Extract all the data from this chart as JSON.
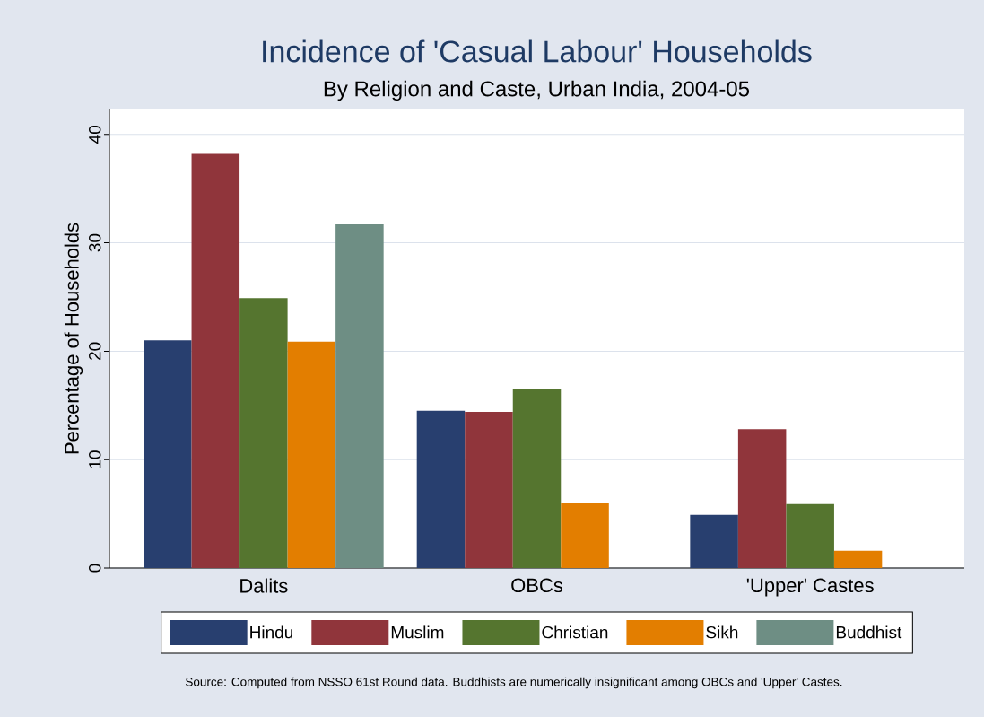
{
  "chart_data": {
    "type": "bar",
    "title": "Incidence of 'Casual Labour' Households",
    "subtitle": "By Religion and Caste, Urban India, 2004-05",
    "ylabel": "Percentage of Households",
    "categories": [
      "Dalits",
      "OBCs",
      "'Upper' Castes"
    ],
    "series": [
      {
        "name": "Hindu",
        "color": "#283f6f",
        "values": [
          21.0,
          14.5,
          4.9
        ]
      },
      {
        "name": "Muslim",
        "color": "#90353b",
        "values": [
          38.2,
          14.4,
          12.8
        ]
      },
      {
        "name": "Christian",
        "color": "#55752f",
        "values": [
          24.9,
          16.5,
          5.9
        ]
      },
      {
        "name": "Sikh",
        "color": "#e37e00",
        "values": [
          20.9,
          6.0,
          1.6
        ]
      },
      {
        "name": "Buddhist",
        "color": "#6e8e84",
        "values": [
          31.7,
          null,
          null
        ]
      }
    ],
    "ylim": [
      0,
      42.3
    ],
    "yticks": [
      0,
      10,
      20,
      30,
      40
    ],
    "grid": "y",
    "legend": "bottom",
    "annotations": [
      "Source: Computed from NSSO 61st Round data.  Buddhists are numerically insignificant among OBCs and 'Upper' Castes."
    ]
  }
}
